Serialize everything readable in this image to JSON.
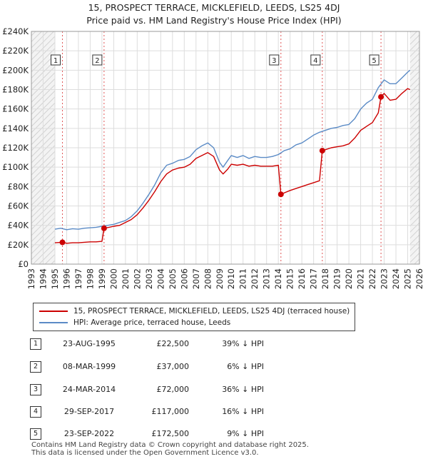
{
  "header": {
    "line1": "15, PROSPECT TERRACE, MICKLEFIELD, LEEDS, LS25 4DJ",
    "line2": "Price paid vs. HM Land Registry's House Price Index (HPI)"
  },
  "legend": {
    "property_label": "15, PROSPECT TERRACE, MICKLEFIELD, LEEDS, LS25 4DJ (terraced house)",
    "hpi_label": "HPI: Average price, terraced house, Leeds",
    "property_color": "#cc0000",
    "hpi_color": "#5b8bc6"
  },
  "sales": [
    {
      "num": "1",
      "date": "23-AUG-1995",
      "price": "£22,500",
      "hpi": "39% ↓ HPI"
    },
    {
      "num": "2",
      "date": "08-MAR-1999",
      "price": "£37,000",
      "hpi": "6% ↓ HPI"
    },
    {
      "num": "3",
      "date": "24-MAR-2014",
      "price": "£72,000",
      "hpi": "36% ↓ HPI"
    },
    {
      "num": "4",
      "date": "29-SEP-2017",
      "price": "£117,000",
      "hpi": "16% ↓ HPI"
    },
    {
      "num": "5",
      "date": "23-SEP-2022",
      "price": "£172,500",
      "hpi": "9% ↓ HPI"
    }
  ],
  "footer": {
    "line1": "Contains HM Land Registry data © Crown copyright and database right 2025.",
    "line2": "This data is licensed under the Open Government Licence v3.0."
  },
  "chart_data": {
    "type": "line",
    "title": "15, PROSPECT TERRACE, MICKLEFIELD, LEEDS, LS25 4DJ",
    "subtitle": "Price paid vs. HM Land Registry's House Price Index (HPI)",
    "xlabel": "",
    "ylabel": "",
    "xlim": [
      1993,
      2026
    ],
    "ylim": [
      0,
      240000
    ],
    "y_ticks": [
      0,
      20000,
      40000,
      60000,
      80000,
      100000,
      120000,
      140000,
      160000,
      180000,
      200000,
      220000,
      240000
    ],
    "y_tick_labels": [
      "£0",
      "£20K",
      "£40K",
      "£60K",
      "£80K",
      "£100K",
      "£120K",
      "£140K",
      "£160K",
      "£180K",
      "£200K",
      "£220K",
      "£240K"
    ],
    "x_ticks": [
      1993,
      1994,
      1995,
      1996,
      1997,
      1998,
      1999,
      2000,
      2001,
      2002,
      2003,
      2004,
      2005,
      2006,
      2007,
      2008,
      2009,
      2010,
      2011,
      2012,
      2013,
      2014,
      2015,
      2016,
      2017,
      2018,
      2019,
      2020,
      2021,
      2022,
      2023,
      2024,
      2025,
      2026
    ],
    "x_tick_labels": [
      "1993",
      "1994",
      "1995",
      "1996",
      "1997",
      "1998",
      "1999",
      "2000",
      "2001",
      "2002",
      "2003",
      "2004",
      "2005",
      "2006",
      "2007",
      "2008",
      "2009",
      "2010",
      "2011",
      "2012",
      "2013",
      "2014",
      "2015",
      "2016",
      "2017",
      "2018",
      "2019",
      "2020",
      "2021",
      "2022",
      "2023",
      "2024",
      "2025",
      "2026"
    ],
    "grid": true,
    "hatched_regions": [
      [
        1993,
        1995
      ],
      [
        2025.2,
        2026
      ]
    ],
    "series": [
      {
        "name": "HPI: Average price, terraced house, Leeds",
        "color": "#5b8bc6",
        "x": [
          1995.0,
          1995.5,
          1996.0,
          1996.5,
          1997.0,
          1997.5,
          1998.0,
          1998.5,
          1999.0,
          1999.5,
          2000.0,
          2000.5,
          2001.0,
          2001.5,
          2002.0,
          2002.5,
          2003.0,
          2003.5,
          2004.0,
          2004.5,
          2005.0,
          2005.5,
          2006.0,
          2006.5,
          2007.0,
          2007.5,
          2008.0,
          2008.5,
          2009.0,
          2009.3,
          2009.7,
          2010.0,
          2010.5,
          2011.0,
          2011.5,
          2012.0,
          2012.5,
          2013.0,
          2013.5,
          2014.0,
          2014.5,
          2015.0,
          2015.5,
          2016.0,
          2016.5,
          2017.0,
          2017.5,
          2018.0,
          2018.5,
          2019.0,
          2019.5,
          2020.0,
          2020.5,
          2021.0,
          2021.5,
          2022.0,
          2022.5,
          2023.0,
          2023.5,
          2024.0,
          2024.5,
          2025.0,
          2025.2
        ],
        "y": [
          36000,
          37000,
          35500,
          36500,
          36000,
          37000,
          37500,
          38000,
          39000,
          40000,
          41000,
          43000,
          45000,
          49000,
          55000,
          63000,
          72000,
          82000,
          94000,
          102000,
          104000,
          107000,
          108000,
          111000,
          118000,
          122000,
          125000,
          120000,
          105000,
          100000,
          107000,
          112000,
          110000,
          112000,
          109000,
          111000,
          110000,
          110000,
          111000,
          113000,
          117000,
          119000,
          123000,
          125000,
          129000,
          133000,
          136000,
          138000,
          140000,
          141000,
          143000,
          144000,
          150000,
          160000,
          166000,
          170000,
          182000,
          190000,
          186000,
          186000,
          192000,
          198000,
          200000
        ]
      },
      {
        "name": "15, PROSPECT TERRACE, MICKLEFIELD, LEEDS, LS25 4DJ (terraced house)",
        "color": "#cc0000",
        "x": [
          1995.0,
          1995.64,
          1996.0,
          1996.5,
          1997.0,
          1997.5,
          1998.0,
          1998.5,
          1999.0,
          1999.18,
          1999.6,
          2000.0,
          2000.5,
          2001.0,
          2001.5,
          2002.0,
          2002.5,
          2003.0,
          2003.5,
          2004.0,
          2004.5,
          2005.0,
          2005.5,
          2006.0,
          2006.5,
          2007.0,
          2007.5,
          2008.0,
          2008.5,
          2009.0,
          2009.3,
          2009.7,
          2010.0,
          2010.5,
          2011.0,
          2011.5,
          2012.0,
          2012.5,
          2013.0,
          2013.5,
          2014.0,
          2014.22,
          2014.6,
          2015.0,
          2015.5,
          2016.0,
          2016.5,
          2017.0,
          2017.5,
          2017.74,
          2018.0,
          2018.5,
          2019.0,
          2019.5,
          2020.0,
          2020.5,
          2021.0,
          2021.5,
          2022.0,
          2022.5,
          2022.73,
          2023.0,
          2023.5,
          2024.0,
          2024.5,
          2025.0,
          2025.2
        ],
        "y": [
          22000,
          22500,
          21500,
          22000,
          22000,
          22500,
          23000,
          23000,
          23500,
          37000,
          38000,
          39000,
          40000,
          43000,
          46000,
          51000,
          58000,
          66000,
          75000,
          85000,
          93000,
          97000,
          99000,
          100000,
          103000,
          109000,
          112000,
          115000,
          111000,
          97000,
          93000,
          98000,
          103000,
          102000,
          103000,
          101000,
          102000,
          101000,
          101000,
          101000,
          102000,
          72000,
          74000,
          76000,
          78000,
          80000,
          82000,
          84000,
          86000,
          117000,
          118000,
          120000,
          121000,
          122000,
          124000,
          130000,
          138000,
          142000,
          146000,
          156000,
          172500,
          176000,
          169000,
          170000,
          176000,
          181000,
          180000
        ]
      }
    ],
    "sale_markers": [
      {
        "label": "1",
        "x": 1995.64,
        "y": 22500
      },
      {
        "label": "2",
        "x": 1999.18,
        "y": 37000
      },
      {
        "label": "3",
        "x": 2014.22,
        "y": 72000
      },
      {
        "label": "4",
        "x": 2017.74,
        "y": 117000
      },
      {
        "label": "5",
        "x": 2022.73,
        "y": 172500
      }
    ]
  }
}
